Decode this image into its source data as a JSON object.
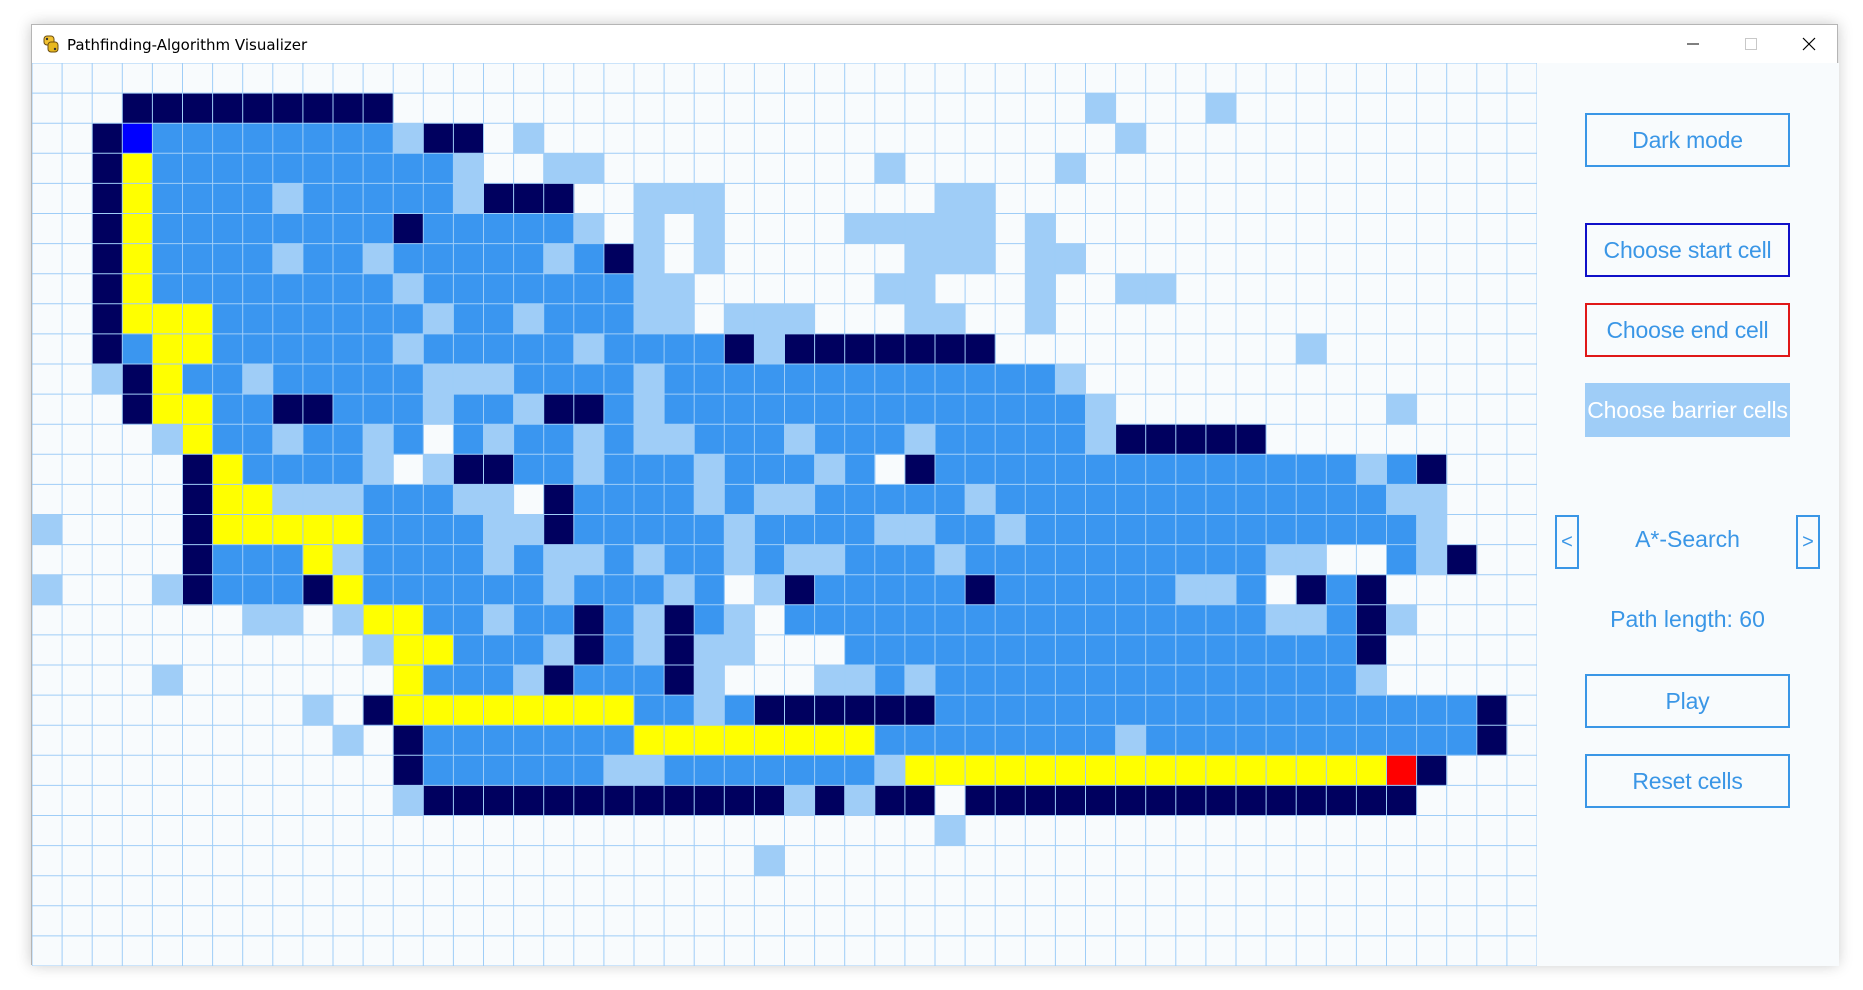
{
  "window": {
    "title": "Pathfinding-Algorithm Visualizer"
  },
  "panel": {
    "dark_mode": "Dark mode",
    "choose_start": "Choose start cell",
    "choose_end": "Choose end cell",
    "choose_barrier": "Choose barrier cells",
    "prev": "<",
    "next": ">",
    "algorithm": "A*-Search",
    "path_length": "Path length: 60",
    "play": "Play",
    "reset": "Reset cells"
  },
  "colors": {
    "empty": "#f8fbfd",
    "grid_line": "#9fcdf7",
    "barrier": "#00005f",
    "closed": "#3a96f0",
    "open": "#9fcdf7",
    "path": "#ffff00",
    "start": "#0000ff",
    "end": "#ff0000"
  },
  "legend": {
    "#": "barrier",
    "c": "closed",
    "o": "open",
    "y": "path",
    "S": "start",
    "E": "end",
    ".": "empty"
  },
  "grid": {
    "cols": 50,
    "rows": 30,
    "cells": [
      "..................................................",
      "...#########.......................o...o..........",
      "..#Scccccccco##.o...................o.............",
      "..#ycccccccccco..oo.........o.....o...............",
      "..#yccccoccccco###..ooo.......oo..................",
      "..#ycccccccc#ccccco.o.o....ooooo.o................",
      "..#yccccoccocccccoc#o.o......ooo.oo...............",
      "..#yccccccccocccccccoo......oo...o..oo............",
      "..#yyycccccccoccocccoo.ooo...oo..o................",
      "..#cyyccccccocccccocccc#o#######..........o.......",
      "..o#yccocccccoooccccoccccccccccccco...............",
      "...#yycc##cccocco##cocccccccccccccco.........o....",
      "....oyccoccoc.coccocoocccocccoccccco#####.........",
      ".....#ycccco.o##ccocccocccoc.#ccccccccccccccoc#...",
      ".....#yyooocccoo.#ccccocoocccccocccccccccccccoo...",
      "o....#yyyyyccccoo#cccccoccccooccoccccccccccccco...",
      ".....#cccyoccccocoococcocoocccoccccccccccoo..co#..",
      "o...o#ccc#yccccccocccoc.o#ccccc#ccccccooc.#c#.....",
      ".......oo.oyyccocc#co#co.ccccccccccccccccooc#o....",
      "...........oyyccco#co#oo...ccccccccccccccccc#.....",
      "....o.......yccco#ccc#o...oococccccccccccccco.....",
      ".........o.#yyyyyyyyccoc######cccccccccccccccccc#.",
      "..........o.#cccccccyyyyyyyyccccccccoccccccccccc#.",
      "............#ccccccoocccccccoyyyyyyyyyyyyyyyyE#...",
      "............o############o#o##.###############....",
      "..............................o...................",
      "........................o.........................",
      "..................................................",
      "..................................................",
      ".................................................."
    ]
  }
}
